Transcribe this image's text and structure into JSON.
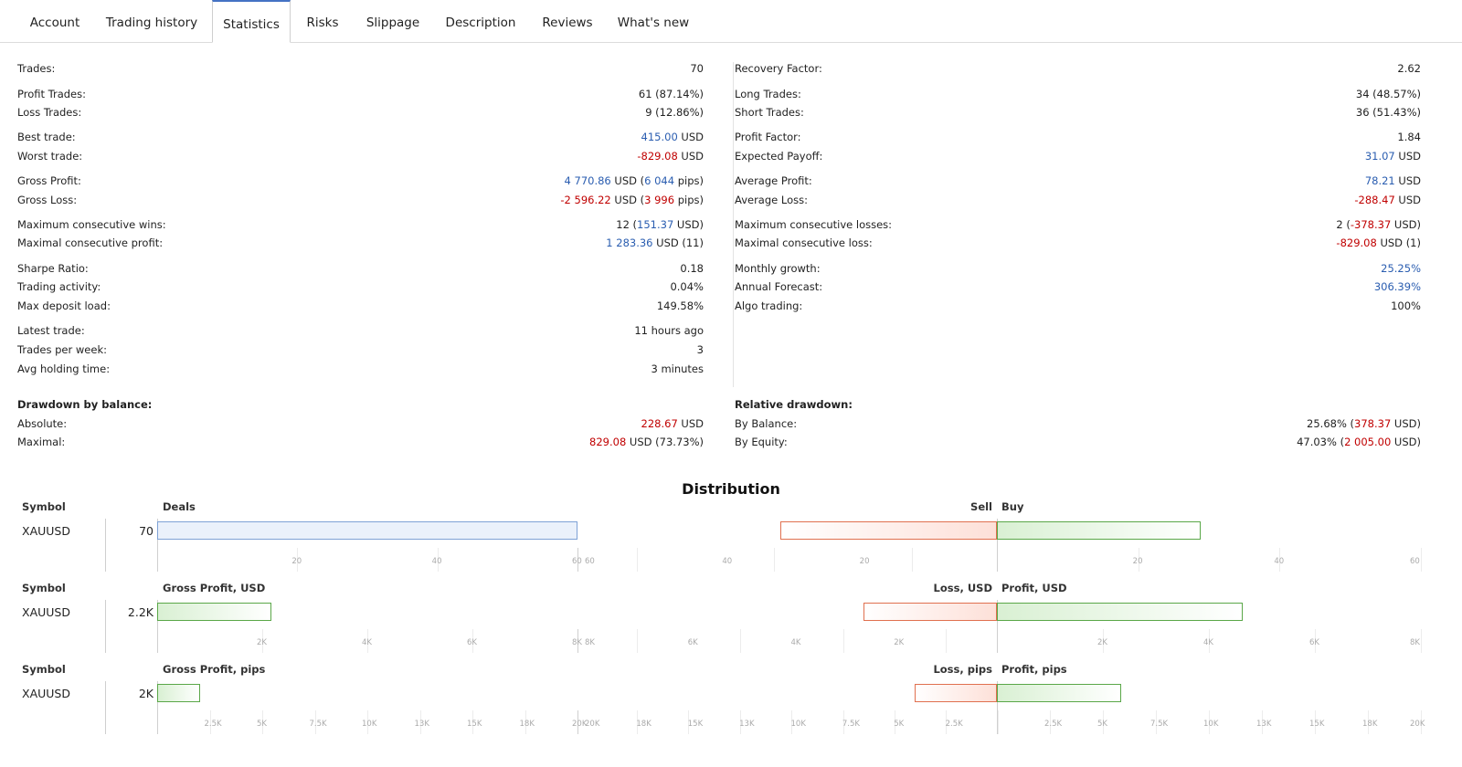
{
  "tabs": [
    "Account",
    "Trading history",
    "Statistics",
    "Risks",
    "Slippage",
    "Description",
    "Reviews",
    "What's new"
  ],
  "active_tab": "Statistics",
  "left_stats": [
    {
      "label": "Trades:",
      "parts": [
        {
          "t": "70",
          "c": ""
        }
      ]
    },
    {
      "label": "Profit Trades:",
      "parts": [
        {
          "t": "61 (87.14%)",
          "c": ""
        }
      ]
    },
    {
      "label": "Loss Trades:",
      "parts": [
        {
          "t": "9 (12.86%)",
          "c": ""
        }
      ]
    },
    {
      "label": "Best trade:",
      "parts": [
        {
          "t": "415.00",
          "c": "blue"
        },
        {
          "t": " USD",
          "c": ""
        }
      ]
    },
    {
      "label": "Worst trade:",
      "parts": [
        {
          "t": "-829.08",
          "c": "red"
        },
        {
          "t": " USD",
          "c": ""
        }
      ]
    },
    {
      "label": "Gross Profit:",
      "parts": [
        {
          "t": "4 770.86",
          "c": "blue"
        },
        {
          "t": " USD (",
          "c": ""
        },
        {
          "t": "6 044",
          "c": "blue"
        },
        {
          "t": " pips)",
          "c": ""
        }
      ]
    },
    {
      "label": "Gross Loss:",
      "parts": [
        {
          "t": "-2 596.22",
          "c": "red"
        },
        {
          "t": " USD (",
          "c": ""
        },
        {
          "t": "3 996",
          "c": "red"
        },
        {
          "t": " pips)",
          "c": ""
        }
      ]
    },
    {
      "label": "Maximum consecutive wins:",
      "parts": [
        {
          "t": "12 (",
          "c": ""
        },
        {
          "t": "151.37",
          "c": "blue"
        },
        {
          "t": " USD)",
          "c": ""
        }
      ]
    },
    {
      "label": "Maximal consecutive profit:",
      "parts": [
        {
          "t": "1 283.36",
          "c": "blue"
        },
        {
          "t": " USD (11)",
          "c": ""
        }
      ]
    },
    {
      "label": "Sharpe Ratio:",
      "parts": [
        {
          "t": "0.18",
          "c": ""
        }
      ]
    },
    {
      "label": "Trading activity:",
      "parts": [
        {
          "t": "0.04%",
          "c": ""
        }
      ]
    },
    {
      "label": "Max deposit load:",
      "parts": [
        {
          "t": "149.58%",
          "c": ""
        }
      ]
    },
    {
      "label": "Latest trade:",
      "parts": [
        {
          "t": "11 hours ago",
          "c": ""
        }
      ]
    },
    {
      "label": "Trades per week:",
      "parts": [
        {
          "t": "3",
          "c": ""
        }
      ]
    },
    {
      "label": "Avg holding time:",
      "parts": [
        {
          "t": "3 minutes",
          "c": ""
        }
      ]
    }
  ],
  "right_stats": [
    {
      "label": "Recovery Factor:",
      "parts": [
        {
          "t": "2.62",
          "c": ""
        }
      ]
    },
    {
      "label": "Long Trades:",
      "parts": [
        {
          "t": "34 (48.57%)",
          "c": ""
        }
      ]
    },
    {
      "label": "Short Trades:",
      "parts": [
        {
          "t": "36 (51.43%)",
          "c": ""
        }
      ]
    },
    {
      "label": "Profit Factor:",
      "parts": [
        {
          "t": "1.84",
          "c": ""
        }
      ]
    },
    {
      "label": "Expected Payoff:",
      "parts": [
        {
          "t": "31.07",
          "c": "blue"
        },
        {
          "t": " USD",
          "c": ""
        }
      ]
    },
    {
      "label": "Average Profit:",
      "parts": [
        {
          "t": "78.21",
          "c": "blue"
        },
        {
          "t": " USD",
          "c": ""
        }
      ]
    },
    {
      "label": "Average Loss:",
      "parts": [
        {
          "t": "-288.47",
          "c": "red"
        },
        {
          "t": " USD",
          "c": ""
        }
      ]
    },
    {
      "label": "Maximum consecutive losses:",
      "parts": [
        {
          "t": "2 (",
          "c": ""
        },
        {
          "t": "-378.37",
          "c": "red"
        },
        {
          "t": " USD)",
          "c": ""
        }
      ]
    },
    {
      "label": "Maximal consecutive loss:",
      "parts": [
        {
          "t": "-829.08",
          "c": "red"
        },
        {
          "t": " USD (1)",
          "c": ""
        }
      ]
    },
    {
      "label": "Monthly growth:",
      "parts": [
        {
          "t": "25.25%",
          "c": "blue"
        }
      ]
    },
    {
      "label": "Annual Forecast:",
      "parts": [
        {
          "t": "306.39%",
          "c": "blue"
        }
      ]
    },
    {
      "label": "Algo trading:",
      "parts": [
        {
          "t": "100%",
          "c": ""
        }
      ]
    }
  ],
  "drawdown_balance": {
    "title": "Drawdown by balance:",
    "rows": [
      {
        "label": "Absolute:",
        "parts": [
          {
            "t": "228.67",
            "c": "red"
          },
          {
            "t": " USD",
            "c": ""
          }
        ]
      },
      {
        "label": "Maximal:",
        "parts": [
          {
            "t": "829.08",
            "c": "red"
          },
          {
            "t": " USD (73.73%)",
            "c": ""
          }
        ]
      }
    ]
  },
  "relative_drawdown": {
    "title": "Relative drawdown:",
    "rows": [
      {
        "label": "By Balance:",
        "parts": [
          {
            "t": "25.68% (",
            "c": ""
          },
          {
            "t": "378.37",
            "c": "red"
          },
          {
            "t": " USD)",
            "c": ""
          }
        ]
      },
      {
        "label": "By Equity:",
        "parts": [
          {
            "t": "47.03% (",
            "c": ""
          },
          {
            "t": "2 005.00",
            "c": "red"
          },
          {
            "t": " USD)",
            "c": ""
          }
        ]
      }
    ]
  },
  "distribution": {
    "title": "Distribution",
    "sections": [
      {
        "symbol_header": "Symbol",
        "symbol": "XAUUSD",
        "total": "70",
        "left_header": "Deals",
        "neg_header": "Sell",
        "pos_header": "Buy",
        "left_ticks": [
          "20",
          "40",
          "60"
        ],
        "mid_ticks": [
          "60",
          "40",
          "20"
        ],
        "right_ticks": [
          "20",
          "40",
          "60"
        ]
      },
      {
        "symbol_header": "Symbol",
        "symbol": "XAUUSD",
        "total": "2.2K",
        "left_header": "Gross Profit, USD",
        "neg_header": "Loss, USD",
        "pos_header": "Profit, USD",
        "left_ticks": [
          "2K",
          "4K",
          "6K",
          "8K"
        ],
        "mid_ticks": [
          "8K",
          "6K",
          "4K",
          "2K"
        ],
        "right_ticks": [
          "2K",
          "4K",
          "6K",
          "8K"
        ]
      },
      {
        "symbol_header": "Symbol",
        "symbol": "XAUUSD",
        "total": "2K",
        "left_header": "Gross Profit, pips",
        "neg_header": "Loss, pips",
        "pos_header": "Profit, pips",
        "left_ticks": [
          "2.5K",
          "5K",
          "7.5K",
          "10K",
          "13K",
          "15K",
          "18K",
          "20K"
        ],
        "mid_ticks": [
          "20K",
          "18K",
          "15K",
          "13K",
          "10K",
          "7.5K",
          "5K",
          "2.5K"
        ],
        "right_ticks": [
          "2.5K",
          "5K",
          "7.5K",
          "10K",
          "13K",
          "15K",
          "18K",
          "20K"
        ]
      }
    ]
  },
  "chart_data": [
    {
      "type": "bar",
      "title": "Deals",
      "categories": [
        "XAUUSD"
      ],
      "values": [
        70
      ],
      "xlim": [
        0,
        70
      ]
    },
    {
      "type": "bar",
      "title": "Sell / Buy",
      "categories": [
        "XAUUSD"
      ],
      "series": [
        {
          "name": "Sell",
          "values": [
            36
          ]
        },
        {
          "name": "Buy",
          "values": [
            34
          ]
        }
      ],
      "xlim": [
        0,
        70
      ]
    },
    {
      "type": "bar",
      "title": "Gross Profit, USD",
      "categories": [
        "XAUUSD"
      ],
      "values": [
        2174.64
      ],
      "xlim": [
        0,
        8000
      ]
    },
    {
      "type": "bar",
      "title": "Loss, USD / Profit, USD",
      "categories": [
        "XAUUSD"
      ],
      "series": [
        {
          "name": "Loss, USD",
          "values": [
            2596.22
          ]
        },
        {
          "name": "Profit, USD",
          "values": [
            4770.86
          ]
        }
      ],
      "xlim": [
        0,
        8000
      ]
    },
    {
      "type": "bar",
      "title": "Gross Profit, pips",
      "categories": [
        "XAUUSD"
      ],
      "values": [
        2048
      ],
      "xlim": [
        0,
        20000
      ]
    },
    {
      "type": "bar",
      "title": "Loss, pips / Profit, pips",
      "categories": [
        "XAUUSD"
      ],
      "series": [
        {
          "name": "Loss, pips",
          "values": [
            3996
          ]
        },
        {
          "name": "Profit, pips",
          "values": [
            6044
          ]
        }
      ],
      "xlim": [
        0,
        20000
      ]
    }
  ]
}
